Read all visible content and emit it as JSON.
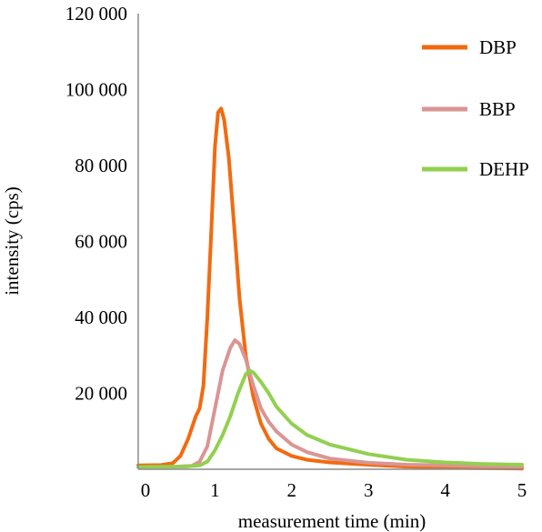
{
  "chart_data": {
    "type": "line",
    "xlabel": "measurement time (min)",
    "ylabel": "intensity (cps)",
    "xlim": [
      0,
      5
    ],
    "ylim": [
      0,
      120000
    ],
    "x_ticks": [
      0,
      1,
      2,
      3,
      4,
      5
    ],
    "x_tick_labels": [
      "0",
      "1",
      "2",
      "3",
      "4",
      "5"
    ],
    "y_ticks": [
      0,
      20000,
      40000,
      60000,
      80000,
      100000,
      120000
    ],
    "y_tick_labels": [
      "",
      "20 000",
      "40 000",
      "60 000",
      "80 000",
      "100 000",
      "120 000"
    ],
    "grid": false,
    "legend_position": "top-right",
    "series": [
      {
        "name": "DBP",
        "color": "#f26a10",
        "points": [
          [
            0.0,
            1000
          ],
          [
            0.3,
            1100
          ],
          [
            0.45,
            1600
          ],
          [
            0.55,
            3500
          ],
          [
            0.65,
            8000
          ],
          [
            0.75,
            14000
          ],
          [
            0.8,
            16000
          ],
          [
            0.85,
            22000
          ],
          [
            0.9,
            40000
          ],
          [
            0.95,
            62000
          ],
          [
            1.0,
            85000
          ],
          [
            1.04,
            94000
          ],
          [
            1.08,
            95000
          ],
          [
            1.12,
            92000
          ],
          [
            1.18,
            82000
          ],
          [
            1.25,
            64000
          ],
          [
            1.32,
            45000
          ],
          [
            1.4,
            30000
          ],
          [
            1.5,
            19000
          ],
          [
            1.6,
            12000
          ],
          [
            1.7,
            8000
          ],
          [
            1.8,
            5500
          ],
          [
            2.0,
            3500
          ],
          [
            2.2,
            2500
          ],
          [
            2.5,
            1800
          ],
          [
            3.0,
            1200
          ],
          [
            3.5,
            700
          ],
          [
            4.0,
            400
          ],
          [
            4.5,
            300
          ],
          [
            5.0,
            200
          ]
        ]
      },
      {
        "name": "BBP",
        "color": "#d99594",
        "points": [
          [
            0.0,
            600
          ],
          [
            0.5,
            700
          ],
          [
            0.7,
            900
          ],
          [
            0.8,
            2000
          ],
          [
            0.9,
            6000
          ],
          [
            1.0,
            16000
          ],
          [
            1.1,
            26000
          ],
          [
            1.2,
            32000
          ],
          [
            1.26,
            34000
          ],
          [
            1.32,
            33000
          ],
          [
            1.4,
            29000
          ],
          [
            1.5,
            22000
          ],
          [
            1.6,
            16000
          ],
          [
            1.7,
            12500
          ],
          [
            1.8,
            10000
          ],
          [
            2.0,
            6500
          ],
          [
            2.2,
            4500
          ],
          [
            2.5,
            2800
          ],
          [
            3.0,
            1700
          ],
          [
            3.5,
            1200
          ],
          [
            4.0,
            1000
          ],
          [
            4.5,
            800
          ],
          [
            5.0,
            700
          ]
        ]
      },
      {
        "name": "DEHP",
        "color": "#92d050",
        "points": [
          [
            0.0,
            600
          ],
          [
            0.6,
            700
          ],
          [
            0.8,
            1000
          ],
          [
            0.9,
            2000
          ],
          [
            1.0,
            5000
          ],
          [
            1.1,
            9000
          ],
          [
            1.2,
            14000
          ],
          [
            1.3,
            20000
          ],
          [
            1.4,
            25000
          ],
          [
            1.45,
            26000
          ],
          [
            1.5,
            25500
          ],
          [
            1.6,
            23000
          ],
          [
            1.7,
            20000
          ],
          [
            1.8,
            16500
          ],
          [
            2.0,
            12000
          ],
          [
            2.2,
            9000
          ],
          [
            2.5,
            6500
          ],
          [
            3.0,
            4000
          ],
          [
            3.5,
            2500
          ],
          [
            4.0,
            1800
          ],
          [
            4.5,
            1400
          ],
          [
            5.0,
            1200
          ]
        ]
      }
    ]
  }
}
